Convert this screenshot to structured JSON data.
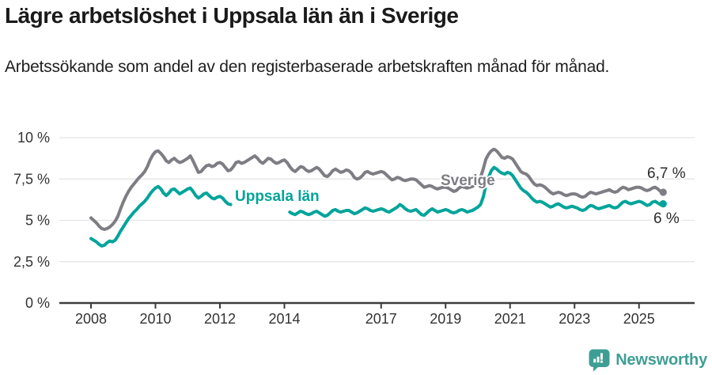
{
  "chart_data": {
    "type": "line",
    "title": "Lägre arbetslöshet i Uppsala län än i Sverige",
    "subtitle": "Arbetssökande som andel av den registerbaserade arbetskraften månad för månad.",
    "x_unit": "month",
    "x_start": "2008-01",
    "x_end": "2025-10",
    "x_tick_years": [
      2008,
      2010,
      2012,
      2014,
      2017,
      2019,
      2021,
      2023,
      2025
    ],
    "x_tick_labels": [
      "2008",
      "2010",
      "2012",
      "2014",
      "2017",
      "2019",
      "2021",
      "2023",
      "2025"
    ],
    "y_tick_values": [
      0,
      2.5,
      5,
      7.5,
      10
    ],
    "y_tick_labels": [
      "0 %",
      "2,5 %",
      "5 %",
      "7,5 %",
      "10 %"
    ],
    "ylim": [
      0,
      10.5
    ],
    "grid": "horizontal",
    "legend_position": "inline-labels",
    "series": [
      {
        "id": "sverige",
        "name": "Sverige",
        "color": "#7e7d84",
        "end_label": "6,7 %",
        "end_value": 6.7,
        "values": [
          5.15,
          5.0,
          4.85,
          4.65,
          4.5,
          4.45,
          4.5,
          4.6,
          4.75,
          4.95,
          5.25,
          5.7,
          6.1,
          6.45,
          6.75,
          7.0,
          7.2,
          7.4,
          7.6,
          7.75,
          7.95,
          8.25,
          8.65,
          8.95,
          9.15,
          9.2,
          9.05,
          8.85,
          8.6,
          8.5,
          8.65,
          8.75,
          8.6,
          8.5,
          8.55,
          8.65,
          8.75,
          8.9,
          8.6,
          8.25,
          7.9,
          7.95,
          8.15,
          8.3,
          8.35,
          8.25,
          8.3,
          8.45,
          8.5,
          8.4,
          8.2,
          8.0,
          8.05,
          8.25,
          8.5,
          8.55,
          8.45,
          8.5,
          8.6,
          8.7,
          8.8,
          8.9,
          8.75,
          8.55,
          8.45,
          8.6,
          8.75,
          8.7,
          8.55,
          8.45,
          8.5,
          8.6,
          8.65,
          8.5,
          8.25,
          8.05,
          7.95,
          8.1,
          8.25,
          8.2,
          8.05,
          7.95,
          8.0,
          8.1,
          8.2,
          8.1,
          7.9,
          7.7,
          7.65,
          7.8,
          8.0,
          8.1,
          8.0,
          7.9,
          7.95,
          8.05,
          8.0,
          7.85,
          7.6,
          7.5,
          7.55,
          7.7,
          7.9,
          7.95,
          7.85,
          7.8,
          7.85,
          7.9,
          7.95,
          7.9,
          7.75,
          7.6,
          7.45,
          7.5,
          7.6,
          7.55,
          7.45,
          7.4,
          7.45,
          7.5,
          7.5,
          7.45,
          7.3,
          7.15,
          7.0,
          7.05,
          7.1,
          7.05,
          6.95,
          6.9,
          6.95,
          7.0,
          7.0,
          6.95,
          6.85,
          6.75,
          6.8,
          6.95,
          7.05,
          7.0,
          6.95,
          7.0,
          7.05,
          7.15,
          7.4,
          7.6,
          8.1,
          8.7,
          9.0,
          9.2,
          9.3,
          9.2,
          9.0,
          8.8,
          8.75,
          8.85,
          8.8,
          8.7,
          8.45,
          8.2,
          7.95,
          7.85,
          7.8,
          7.65,
          7.4,
          7.2,
          7.1,
          7.15,
          7.1,
          7.0,
          6.85,
          6.7,
          6.6,
          6.65,
          6.7,
          6.65,
          6.55,
          6.5,
          6.55,
          6.6,
          6.6,
          6.55,
          6.45,
          6.4,
          6.45,
          6.6,
          6.7,
          6.65,
          6.6,
          6.65,
          6.7,
          6.75,
          6.8,
          6.85,
          6.75,
          6.7,
          6.75,
          6.9,
          7.0,
          6.95,
          6.85,
          6.9,
          6.95,
          7.0,
          7.0,
          6.95,
          6.85,
          6.8,
          6.85,
          6.95,
          7.0,
          6.9,
          6.75,
          6.7
        ]
      },
      {
        "id": "uppsala-lan",
        "name": "Uppsala län",
        "color": "#00a49a",
        "end_label": "6 %",
        "end_value": 6.0,
        "label_gap_indices": [
          53,
          73
        ],
        "values": [
          3.9,
          3.8,
          3.7,
          3.55,
          3.45,
          3.5,
          3.65,
          3.75,
          3.7,
          3.8,
          4.05,
          4.35,
          4.6,
          4.85,
          5.1,
          5.3,
          5.5,
          5.65,
          5.85,
          6.0,
          6.15,
          6.35,
          6.6,
          6.8,
          6.95,
          7.05,
          6.9,
          6.65,
          6.5,
          6.65,
          6.85,
          6.9,
          6.75,
          6.6,
          6.7,
          6.8,
          6.9,
          6.95,
          6.75,
          6.5,
          6.35,
          6.45,
          6.6,
          6.65,
          6.5,
          6.35,
          6.3,
          6.4,
          6.45,
          6.35,
          6.15,
          6.0,
          5.95,
          6.05,
          6.15,
          6.1,
          6.0,
          5.9,
          5.95,
          6.05,
          6.05,
          6.0,
          5.9,
          5.8,
          5.75,
          5.85,
          5.95,
          5.9,
          5.8,
          5.7,
          5.75,
          5.85,
          5.8,
          5.65,
          5.5,
          5.4,
          5.35,
          5.45,
          5.55,
          5.5,
          5.4,
          5.35,
          5.4,
          5.5,
          5.55,
          5.45,
          5.35,
          5.25,
          5.3,
          5.45,
          5.6,
          5.65,
          5.55,
          5.5,
          5.55,
          5.6,
          5.6,
          5.5,
          5.4,
          5.45,
          5.55,
          5.65,
          5.75,
          5.7,
          5.6,
          5.55,
          5.6,
          5.65,
          5.7,
          5.65,
          5.55,
          5.5,
          5.6,
          5.7,
          5.8,
          5.95,
          5.85,
          5.7,
          5.6,
          5.55,
          5.6,
          5.65,
          5.5,
          5.35,
          5.3,
          5.45,
          5.6,
          5.7,
          5.6,
          5.5,
          5.55,
          5.6,
          5.65,
          5.6,
          5.5,
          5.45,
          5.5,
          5.6,
          5.65,
          5.6,
          5.5,
          5.55,
          5.6,
          5.7,
          5.8,
          5.95,
          6.4,
          7.1,
          7.6,
          8.0,
          8.2,
          8.1,
          7.95,
          7.85,
          7.8,
          7.9,
          7.85,
          7.7,
          7.45,
          7.2,
          6.95,
          6.8,
          6.7,
          6.55,
          6.35,
          6.2,
          6.1,
          6.15,
          6.1,
          6.0,
          5.9,
          5.8,
          5.85,
          5.95,
          6.0,
          5.9,
          5.8,
          5.75,
          5.8,
          5.85,
          5.8,
          5.75,
          5.65,
          5.6,
          5.65,
          5.8,
          5.9,
          5.85,
          5.75,
          5.7,
          5.75,
          5.8,
          5.85,
          5.9,
          5.8,
          5.75,
          5.8,
          5.95,
          6.1,
          6.15,
          6.05,
          6.0,
          6.05,
          6.1,
          6.15,
          6.1,
          6.0,
          5.9,
          5.95,
          6.1,
          6.15,
          6.05,
          5.95,
          6.0
        ]
      }
    ]
  },
  "annotations": {
    "sverige_label": "Sverige",
    "uppsala_label": "Uppsala län",
    "sverige_end_value": "6,7 %",
    "uppsala_end_value": "6 %"
  },
  "colors": {
    "sverige_line": "#7e7d84",
    "uppsala_line": "#00a49a",
    "gridline": "#e3e3e3",
    "axis": "#3c3c3c",
    "axis_text": "#333333",
    "brand_teal": "#3f9e94"
  },
  "branding": {
    "logo_text": "Newsworthy",
    "logo_icon": "bar-chart-speech-bubble-icon"
  }
}
